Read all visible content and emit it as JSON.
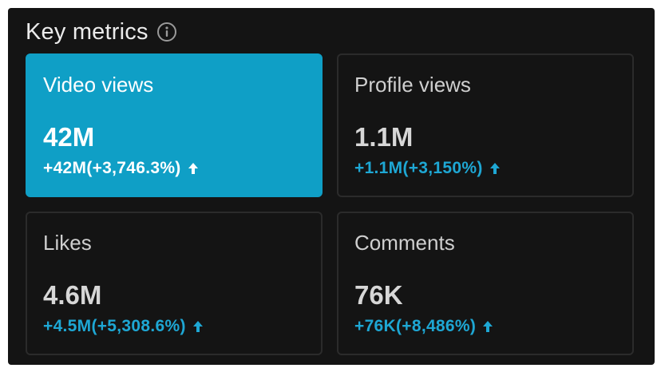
{
  "header": {
    "title": "Key metrics",
    "info_icon": "info-icon"
  },
  "metrics": [
    {
      "label": "Video views",
      "value": "42M",
      "change": "+42M(+3,746.3%)",
      "trend_icon": "arrow-up-icon",
      "selected": true
    },
    {
      "label": "Profile views",
      "value": "1.1M",
      "change": "+1.1M(+3,150%)",
      "trend_icon": "arrow-up-icon",
      "selected": false
    },
    {
      "label": "Likes",
      "value": "4.6M",
      "change": "+4.5M(+5,308.6%)",
      "trend_icon": "arrow-up-icon",
      "selected": false
    },
    {
      "label": "Comments",
      "value": "76K",
      "change": "+76K(+8,486%)",
      "trend_icon": "arrow-up-icon",
      "selected": false
    }
  ],
  "colors": {
    "panel_bg": "#141414",
    "accent": "#0f9fc6",
    "positive_text": "#1ea7d4",
    "card_border": "#2b2b2b"
  }
}
